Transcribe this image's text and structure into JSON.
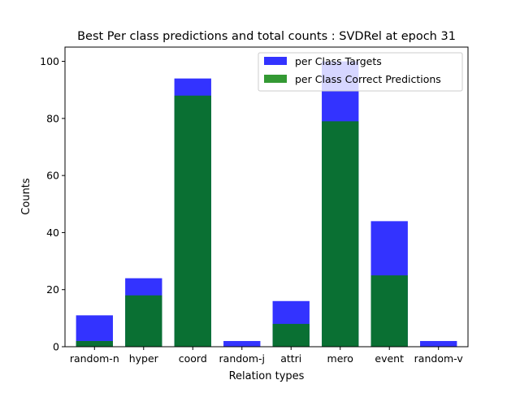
{
  "chart_data": {
    "type": "bar",
    "title": "Best Per class predictions and total counts : SVDRel at epoch 31",
    "xlabel": "Relation types",
    "ylabel": "Counts",
    "categories": [
      "random-n",
      "hyper",
      "coord",
      "random-j",
      "attri",
      "mero",
      "event",
      "random-v"
    ],
    "series": [
      {
        "name": "per Class Targets",
        "color": "#0000ff",
        "values": [
          11,
          24,
          94,
          2,
          16,
          100,
          44,
          2
        ]
      },
      {
        "name": "per Class Correct Predictions",
        "color": "#008000",
        "values": [
          2,
          18,
          88,
          0,
          8,
          79,
          25,
          0
        ]
      }
    ],
    "ylim": [
      0,
      105
    ],
    "yticks": [
      0,
      20,
      40,
      60,
      80,
      100
    ],
    "grid": false,
    "legend": "top-right",
    "overlay": true
  }
}
